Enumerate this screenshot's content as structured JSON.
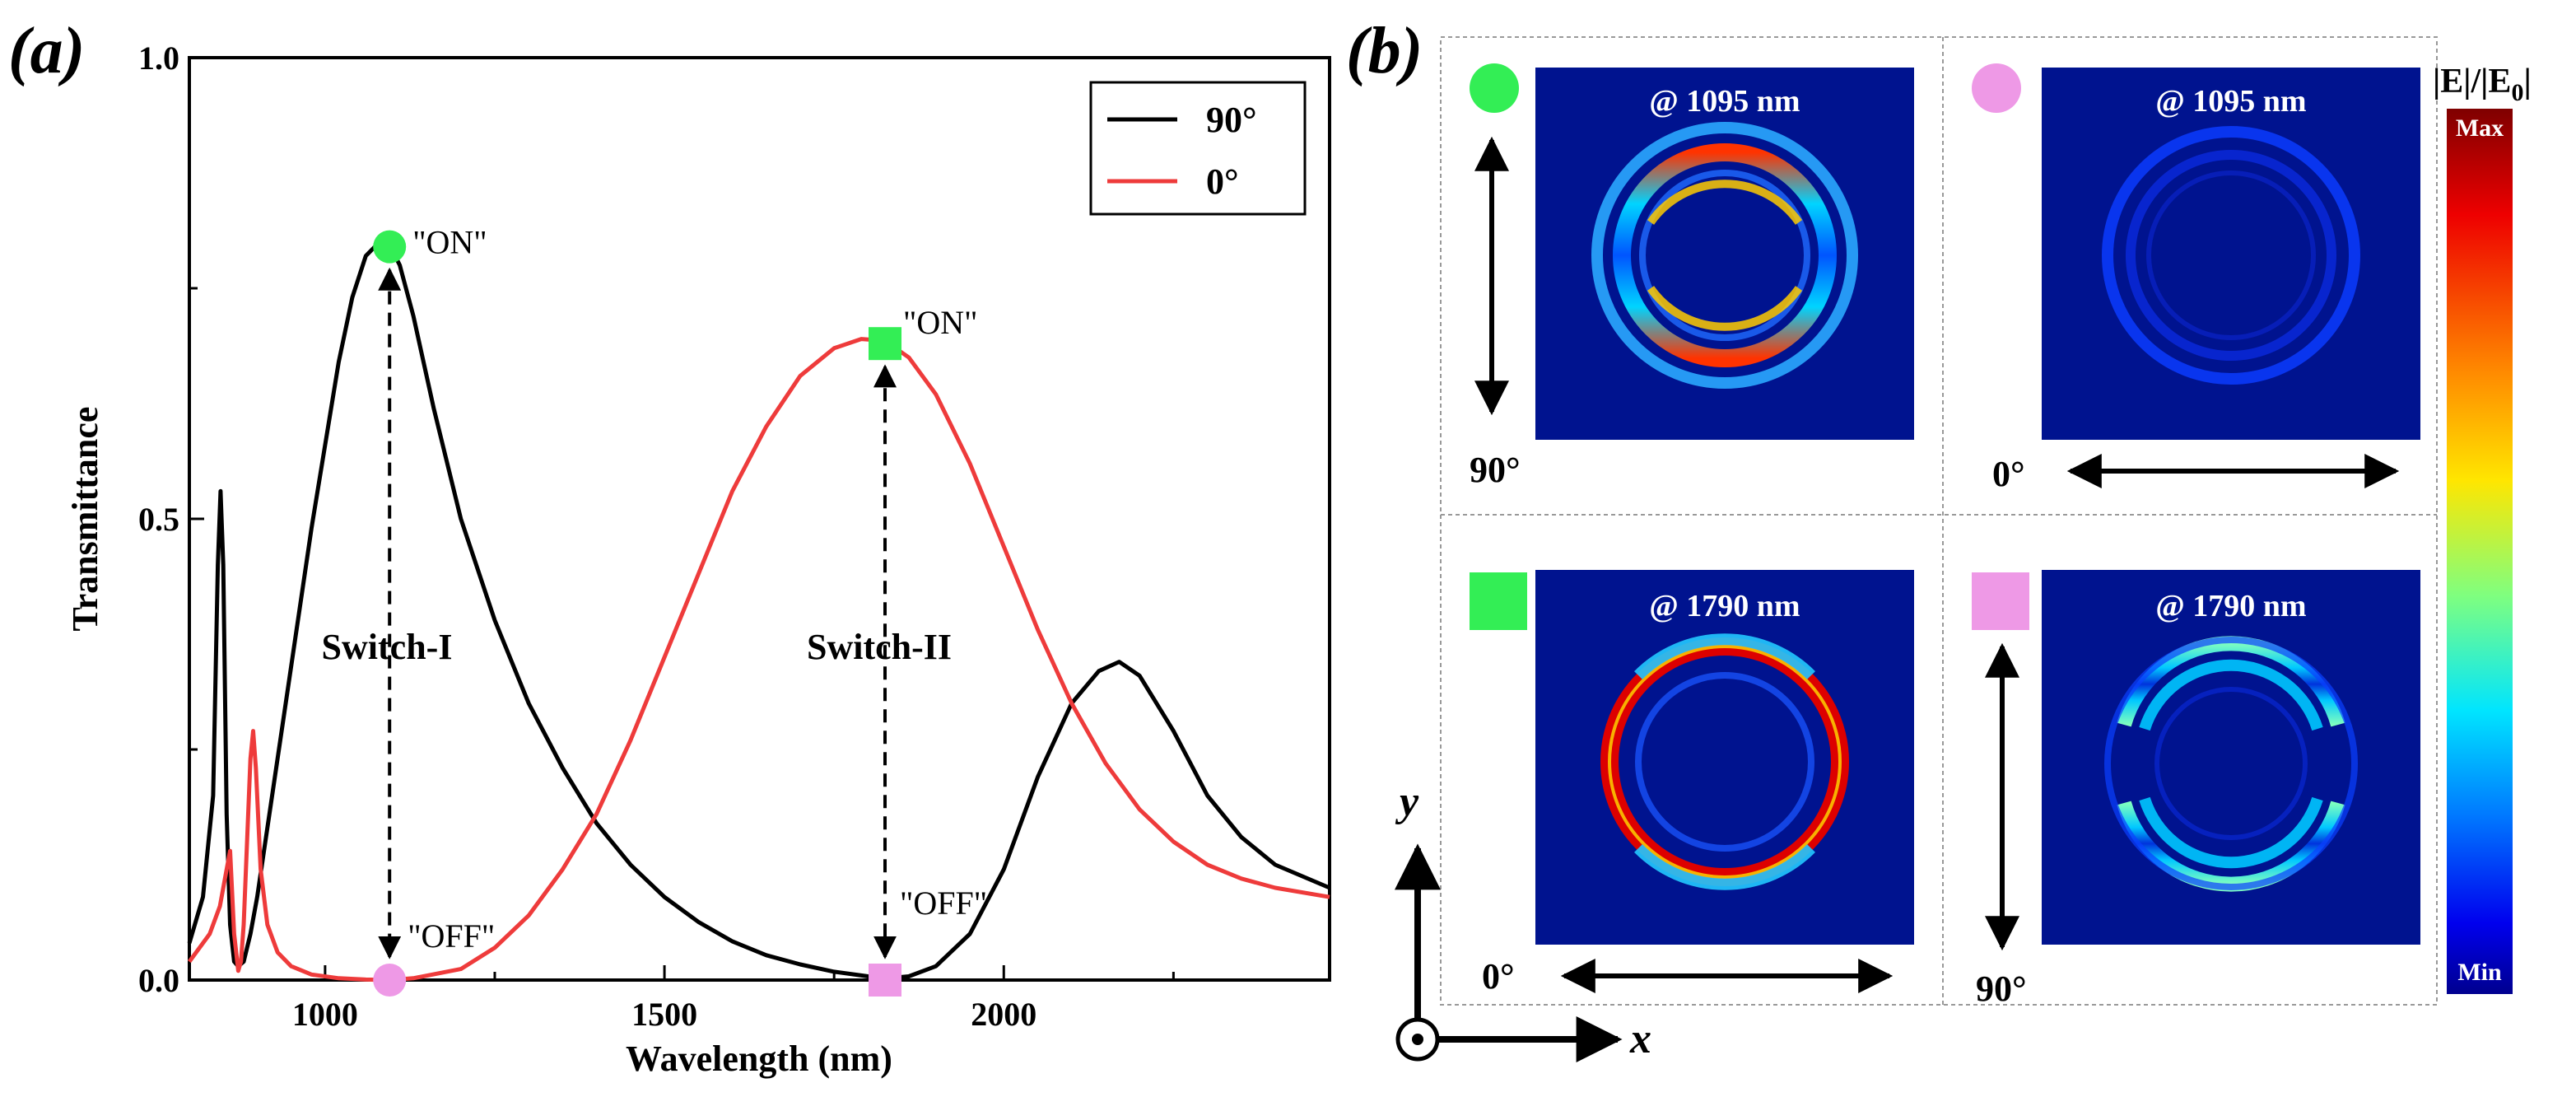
{
  "panel_a": {
    "label": "(a)",
    "legend": [
      {
        "name": "90°",
        "color": "#000000"
      },
      {
        "name": "0°",
        "color": "#ee3b3b"
      }
    ],
    "markers": {
      "on_label": "\"ON\"",
      "off_label": "\"OFF\"",
      "switch_1": "Switch-I",
      "switch_2": "Switch-II",
      "on_color": "#33ee55",
      "off_color": "#ee99e6"
    }
  },
  "chart_data": {
    "type": "line",
    "xlabel": "Wavelength (nm)",
    "ylabel": "Transmittance",
    "xlim": [
      800,
      2480
    ],
    "ylim": [
      0,
      1.0
    ],
    "xticks": [
      1000,
      1500,
      2000
    ],
    "yticks": [
      0.0,
      0.5,
      1.0
    ],
    "ytick_labels": [
      "0.0",
      "0.5",
      "1.0"
    ],
    "series": [
      {
        "name": "90°",
        "color": "#000000",
        "x": [
          800,
          820,
          835,
          842,
          846,
          850,
          855,
          860,
          866,
          872,
          880,
          890,
          900,
          920,
          940,
          960,
          980,
          1000,
          1020,
          1040,
          1060,
          1080,
          1095,
          1110,
          1130,
          1160,
          1200,
          1250,
          1300,
          1350,
          1400,
          1450,
          1500,
          1550,
          1600,
          1650,
          1700,
          1750,
          1800,
          1830,
          1860,
          1900,
          1950,
          2000,
          2050,
          2100,
          2140,
          2170,
          2200,
          2250,
          2300,
          2350,
          2400,
          2480
        ],
        "y": [
          0.04,
          0.09,
          0.2,
          0.45,
          0.53,
          0.45,
          0.18,
          0.06,
          0.02,
          0.015,
          0.02,
          0.05,
          0.09,
          0.19,
          0.29,
          0.39,
          0.49,
          0.58,
          0.67,
          0.74,
          0.785,
          0.8,
          0.797,
          0.775,
          0.72,
          0.62,
          0.5,
          0.39,
          0.3,
          0.23,
          0.17,
          0.125,
          0.09,
          0.063,
          0.042,
          0.027,
          0.017,
          0.009,
          0.004,
          0.002,
          0.004,
          0.015,
          0.05,
          0.12,
          0.22,
          0.3,
          0.335,
          0.345,
          0.33,
          0.27,
          0.2,
          0.155,
          0.125,
          0.1
        ]
      },
      {
        "name": "0°",
        "color": "#ee3b3b",
        "x": [
          800,
          830,
          845,
          855,
          860,
          866,
          872,
          876,
          880,
          885,
          890,
          894,
          898,
          905,
          915,
          930,
          950,
          980,
          1020,
          1060,
          1095,
          1130,
          1200,
          1250,
          1300,
          1350,
          1400,
          1450,
          1500,
          1550,
          1600,
          1650,
          1700,
          1750,
          1790,
          1825,
          1860,
          1900,
          1950,
          2000,
          2050,
          2100,
          2150,
          2200,
          2250,
          2300,
          2350,
          2400,
          2480
        ],
        "y": [
          0.02,
          0.05,
          0.08,
          0.12,
          0.14,
          0.05,
          0.01,
          0.02,
          0.06,
          0.15,
          0.24,
          0.27,
          0.23,
          0.12,
          0.06,
          0.03,
          0.015,
          0.006,
          0.002,
          0.0005,
          0.0,
          0.002,
          0.012,
          0.035,
          0.07,
          0.12,
          0.18,
          0.26,
          0.35,
          0.44,
          0.53,
          0.6,
          0.655,
          0.685,
          0.695,
          0.693,
          0.675,
          0.635,
          0.56,
          0.47,
          0.38,
          0.3,
          0.235,
          0.185,
          0.15,
          0.125,
          0.11,
          0.1,
          0.09
        ]
      }
    ],
    "annotations": [
      {
        "text": "\"ON\"",
        "x": 1095,
        "y": 0.795
      },
      {
        "text": "\"ON\"",
        "x": 1825,
        "y": 0.69
      },
      {
        "text": "\"OFF\"",
        "x": 1095,
        "y": 0.0
      },
      {
        "text": "\"OFF\"",
        "x": 1825,
        "y": 0.0
      }
    ]
  },
  "panel_b": {
    "label": "(b)",
    "cells": [
      {
        "title": "@ 1095 nm",
        "angle": "90°",
        "marker": "circle",
        "marker_color": "#33ee55",
        "pattern": "horizontal-strong"
      },
      {
        "title": "@ 1095 nm",
        "angle": "0°",
        "marker": "circle",
        "marker_color": "#ee99e6",
        "pattern": "weak"
      },
      {
        "title": "@ 1790 nm",
        "angle": "0°",
        "marker": "square",
        "marker_color": "#33ee55",
        "pattern": "ring-strong"
      },
      {
        "title": "@ 1790 nm",
        "angle": "90°",
        "marker": "square",
        "marker_color": "#ee99e6",
        "pattern": "horizontal-medium"
      }
    ],
    "colorbar": {
      "title_main": "|E|/|E",
      "title_sub": "0",
      "title_end": "|",
      "max": "Max",
      "min": "Min"
    },
    "axes": {
      "x": "x",
      "y": "y"
    },
    "field_bg": "#00138f"
  }
}
